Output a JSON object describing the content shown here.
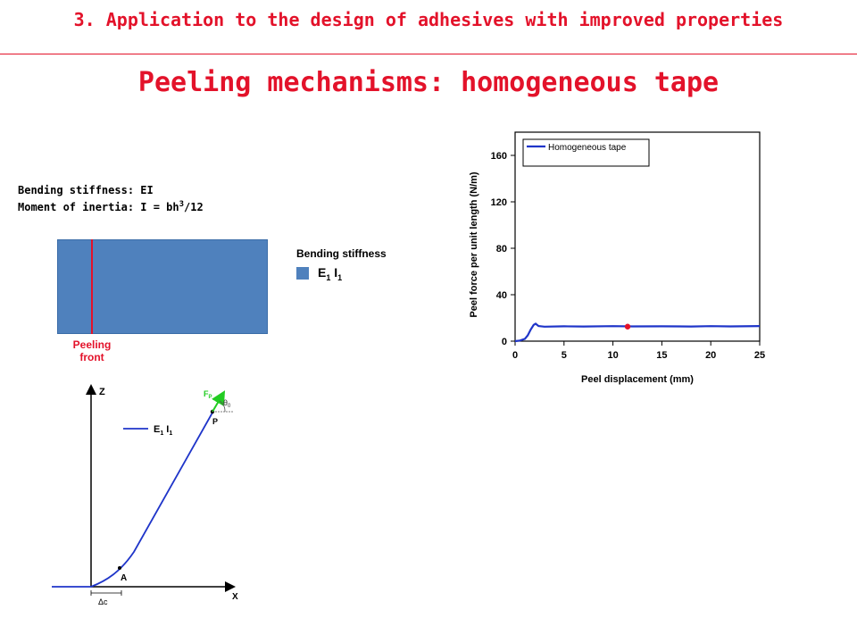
{
  "header": {
    "section_title": "3. Application to the design of adhesives with improved properties"
  },
  "slide": {
    "title": "Peeling mechanisms: homogeneous tape"
  },
  "bending_info": {
    "line1": "Bending stiffness: EI",
    "line2_prefix": "Moment of inertia: I = bh",
    "line2_exp": "3",
    "line2_suffix": "/12"
  },
  "tape_figure": {
    "peeling_front_line1": "Peeling",
    "peeling_front_line2": "front",
    "legend_title": "Bending stiffness",
    "legend_label": "E",
    "legend_label_sub1": "1",
    "legend_label_mid": " I",
    "legend_label_sub2": "1",
    "fill_color": "#4f81bd",
    "front_color": "#e3122a"
  },
  "sketch": {
    "z_label": "Z",
    "x_label": "X",
    "force_label": "F",
    "force_sub": "P",
    "angle_label": "θ",
    "angle_sub": "0",
    "point_p_label": "P",
    "point_a_label": "A",
    "delta_label": "Δc",
    "legend_label": "E",
    "legend_sub1": "1",
    "legend_mid": " I",
    "legend_sub2": "1",
    "curve_color": "#1f35c9",
    "force_color": "#22cc22"
  },
  "chart_data": {
    "type": "line",
    "title": "",
    "xlabel": "Peel displacement (mm)",
    "ylabel": "Peel force per unit length (N/m)",
    "xlim": [
      0,
      25
    ],
    "ylim": [
      0,
      180
    ],
    "xticks": [
      0,
      5,
      10,
      15,
      20,
      25
    ],
    "yticks": [
      0,
      40,
      80,
      120,
      160
    ],
    "grid": false,
    "legend_position": "top-left",
    "series": [
      {
        "name": "Homogeneous tape",
        "color": "#1f35c9",
        "x": [
          0,
          0.5,
          1.0,
          1.3,
          1.6,
          1.9,
          2.1,
          2.4,
          3,
          5,
          7,
          10,
          12,
          15,
          18,
          20,
          22,
          25
        ],
        "y": [
          0,
          0.5,
          2,
          5,
          10,
          14,
          15,
          13,
          12.5,
          12.8,
          12.6,
          12.9,
          12.7,
          12.8,
          12.6,
          12.9,
          12.7,
          13
        ]
      }
    ],
    "marker": {
      "x": 11.5,
      "y": 12.5,
      "color": "#e3122a"
    }
  }
}
